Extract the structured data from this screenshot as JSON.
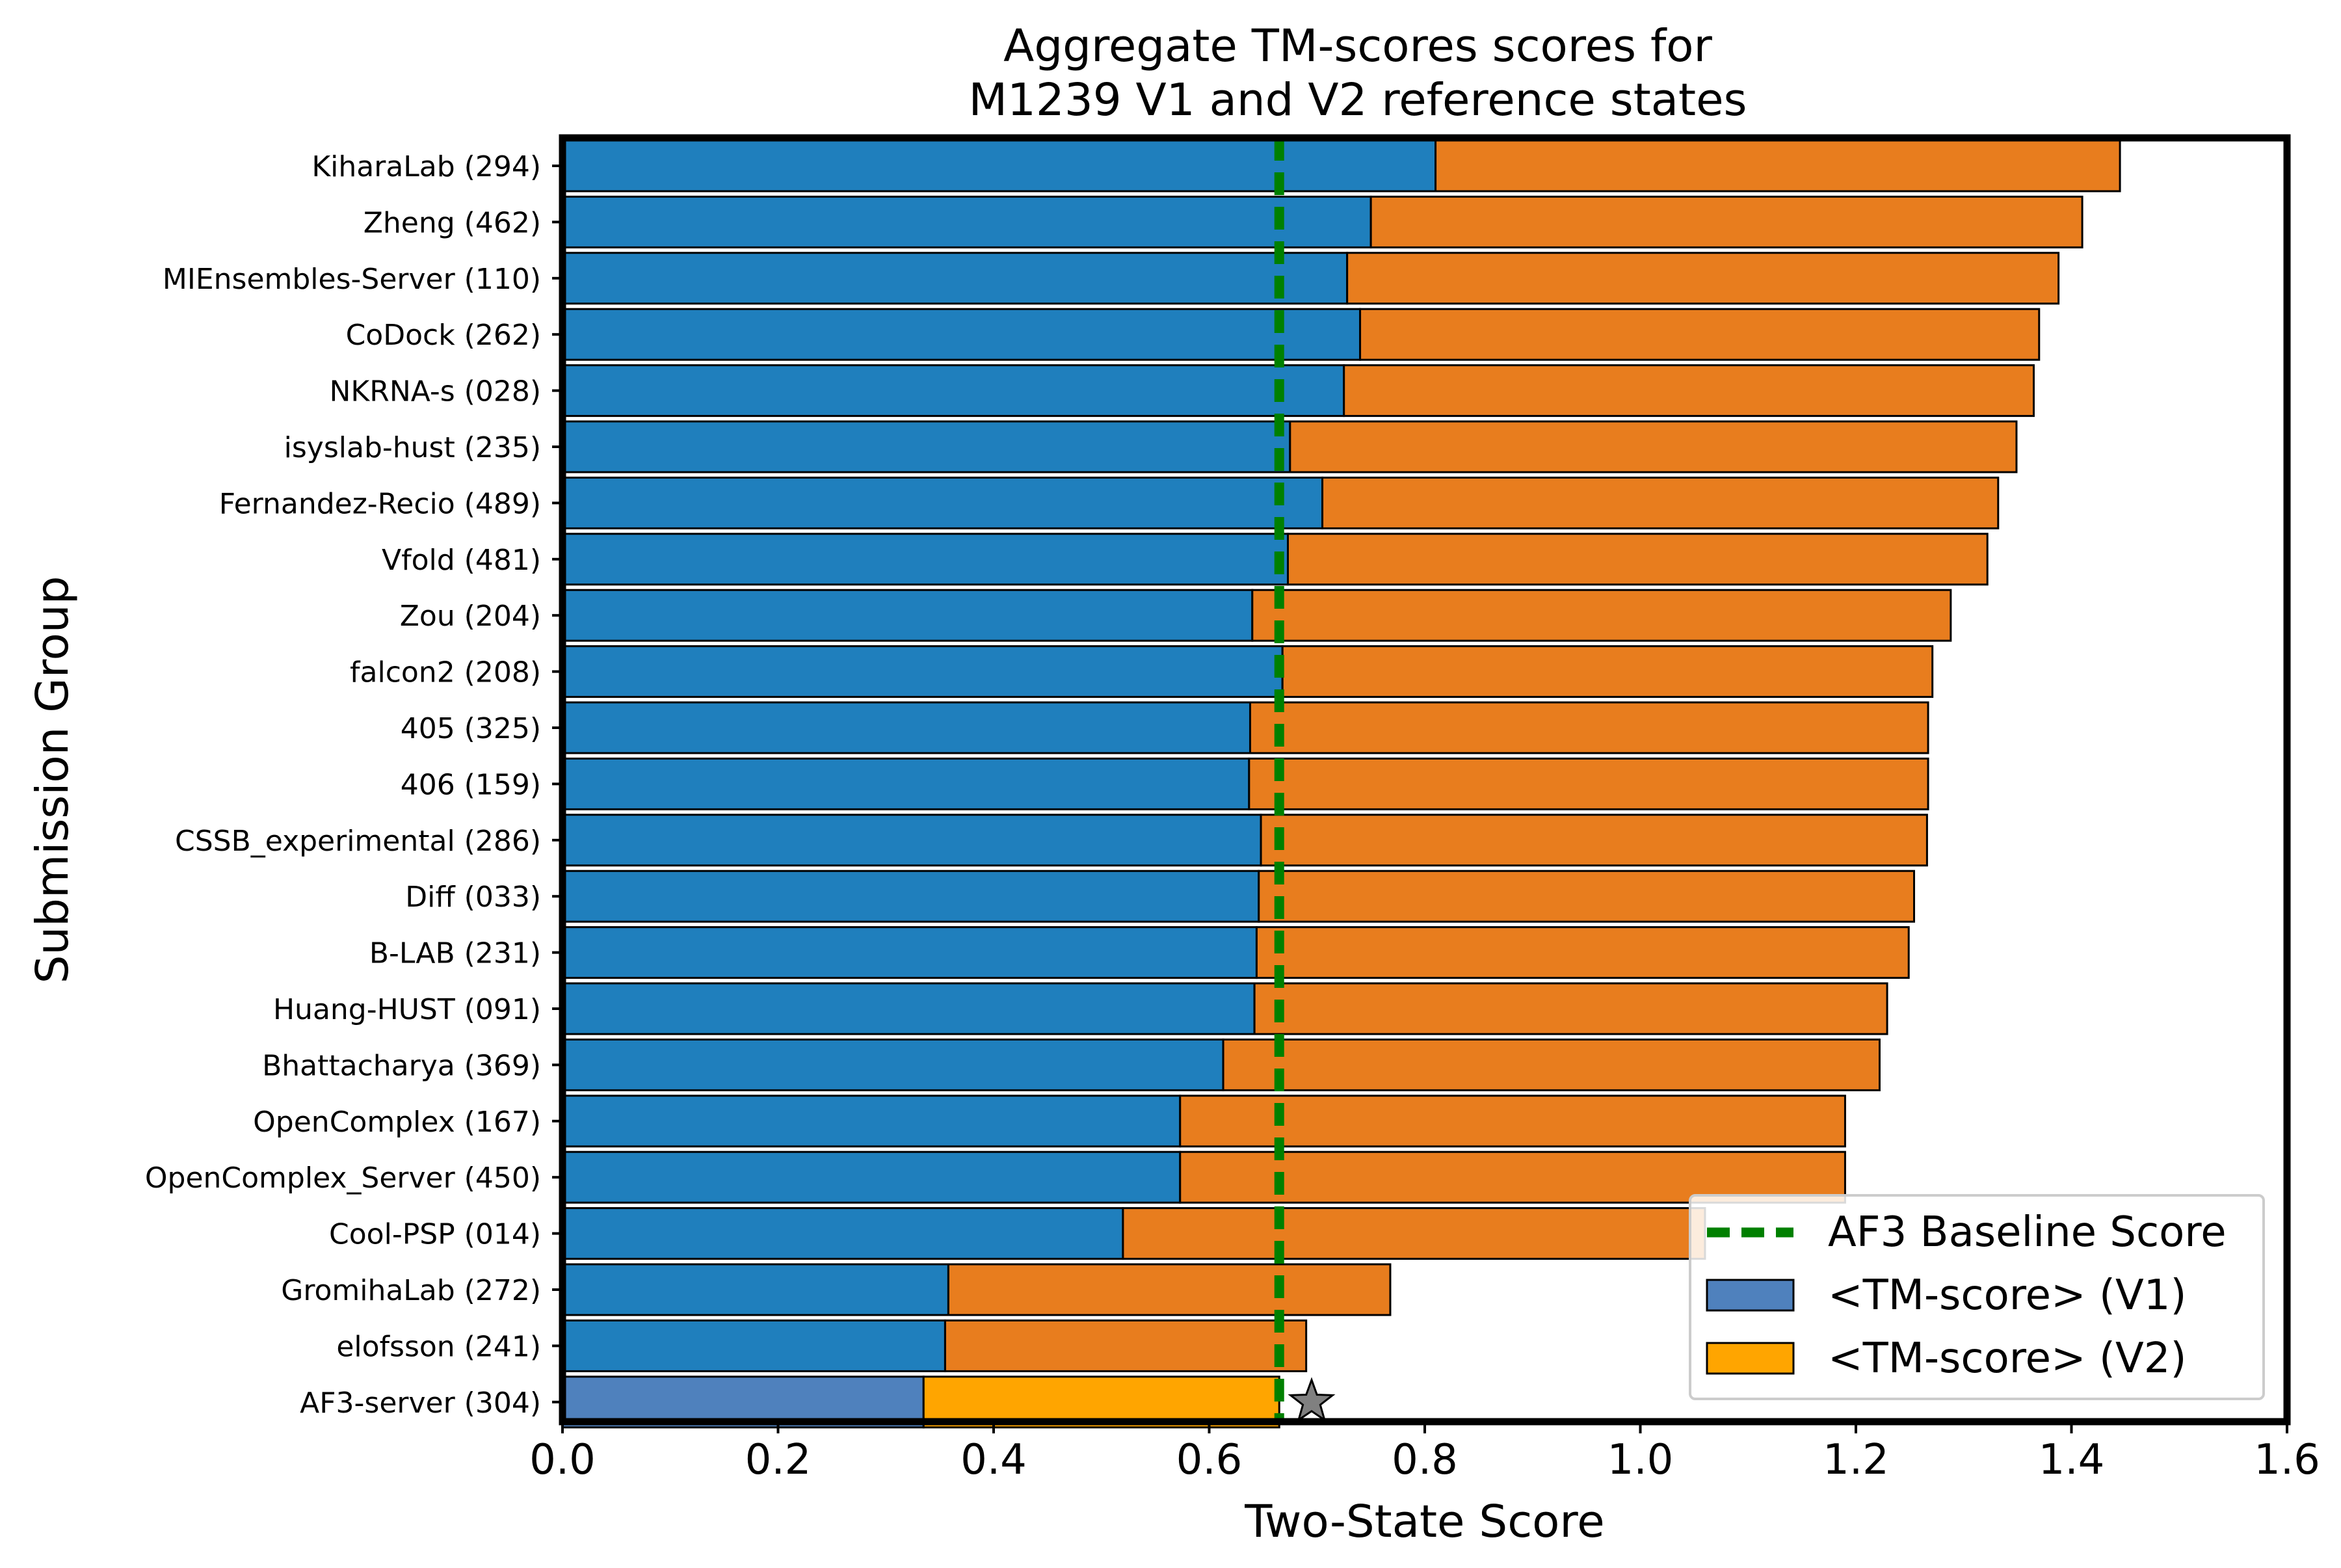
{
  "chart_data": {
    "type": "bar",
    "orientation": "horizontal",
    "stacked": true,
    "title": "Aggregate TM-scores scores for\nM1239 V1 and V2 reference states",
    "title_lines": [
      "Aggregate TM-scores scores for",
      "M1239 V1 and V2 reference states"
    ],
    "xlabel": "Two-State Score",
    "ylabel": "Submission Group",
    "xlim": [
      0.0,
      1.6
    ],
    "xticks": [
      "0.0",
      "0.2",
      "0.4",
      "0.6",
      "0.8",
      "1.0",
      "1.2",
      "1.4",
      "1.6"
    ],
    "grid": false,
    "legend_position": "lower-right",
    "categories": [
      "KiharaLab (294)",
      "Zheng (462)",
      "MIEnsembles-Server (110)",
      "CoDock (262)",
      "NKRNA-s (028)",
      "isyslab-hust (235)",
      "Fernandez-Recio (489)",
      "Vfold (481)",
      "Zou (204)",
      "falcon2 (208)",
      "405 (325)",
      "406 (159)",
      "CSSB_experimental (286)",
      "Diff (033)",
      "B-LAB (231)",
      "Huang-HUST (091)",
      "Bhattacharya (369)",
      "OpenComplex (167)",
      "OpenComplex_Server (450)",
      "Cool-PSP (014)",
      "GromihaLab (272)",
      "elofsson (241)",
      "AF3-server (304)"
    ],
    "series": [
      {
        "name": "<TM-score> (V1)",
        "color": "#1f7fbd",
        "highlight_color": "#4f81bd",
        "values": [
          0.81,
          0.75,
          0.728,
          0.74,
          0.725,
          0.675,
          0.705,
          0.673,
          0.64,
          0.668,
          0.638,
          0.637,
          0.648,
          0.646,
          0.644,
          0.642,
          0.613,
          0.573,
          0.573,
          0.52,
          0.358,
          0.355,
          0.335
        ]
      },
      {
        "name": "<TM-score> (V2)",
        "color": "#e87d1e",
        "highlight_color": "#ffa500",
        "values": [
          0.635,
          0.66,
          0.66,
          0.63,
          0.64,
          0.674,
          0.627,
          0.649,
          0.648,
          0.603,
          0.629,
          0.63,
          0.618,
          0.608,
          0.605,
          0.587,
          0.609,
          0.617,
          0.617,
          0.54,
          0.41,
          0.335,
          0.33
        ]
      }
    ],
    "highlighted_category": "AF3-server (304)",
    "baseline": {
      "name": "AF3 Baseline Score",
      "value": 0.665,
      "color": "#008000"
    },
    "star_marker": {
      "category": "AF3-server (304)",
      "x": 0.695,
      "color": "#808080"
    }
  }
}
